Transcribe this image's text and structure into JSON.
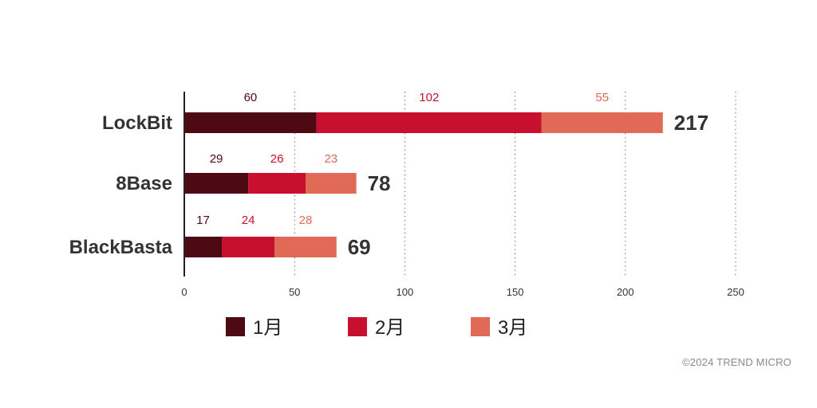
{
  "chart_data": {
    "type": "bar",
    "orientation": "horizontal",
    "stacked": true,
    "categories": [
      "LockBit",
      "8Base",
      "BlackBasta"
    ],
    "series": [
      {
        "name": "1月",
        "color": "#4d0a12",
        "label_color": "#4d0a12",
        "values": [
          60,
          29,
          17
        ]
      },
      {
        "name": "2月",
        "color": "#c8102e",
        "label_color": "#c8102e",
        "values": [
          102,
          26,
          24
        ]
      },
      {
        "name": "3月",
        "color": "#e06a55",
        "label_color": "#e06a55",
        "values": [
          55,
          23,
          28
        ]
      }
    ],
    "totals": [
      217,
      78,
      69
    ],
    "xlim": [
      0,
      250
    ],
    "xticks": [
      0,
      50,
      100,
      150,
      200,
      250
    ],
    "grid": "vertical-dotted",
    "legend_position": "bottom"
  },
  "copyright": "©2024 TREND MICRO"
}
